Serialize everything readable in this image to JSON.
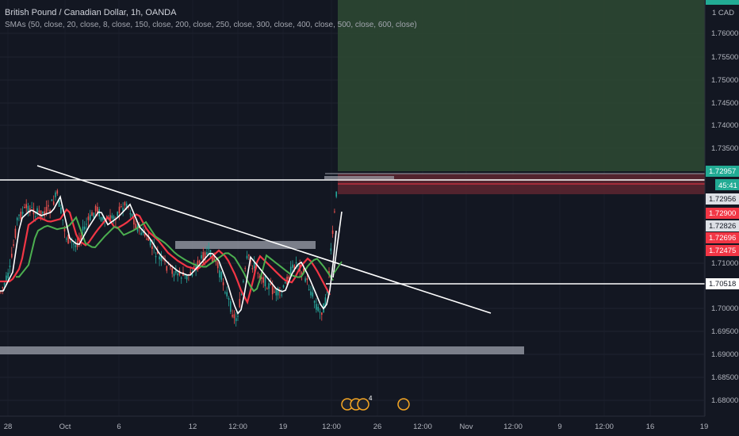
{
  "header": {
    "symbol": "British Pound / Canadian Dollar, 1h, OANDA",
    "indicator": "SMAs (50, close, 20, close, 8, close, 150, close, 200, close, 250, close, 300, close, 400, close, 500, close, 600, close)"
  },
  "currency": "1 CAD",
  "countdown": "45:41",
  "event_icons": {
    "count": "4"
  },
  "colors": {
    "bg": "#131722",
    "grid": "#1f2330",
    "up": "#26a69a",
    "down": "#ef5350",
    "sma_red": "#f23645",
    "sma_green": "#4caf50",
    "sma_white": "#ffffff",
    "target_zone": "#2e4a32",
    "stop_zone": "#5a2530",
    "last_tag": "#22ab94"
  },
  "chart_data": {
    "type": "candlestick",
    "x_ticks": [
      "28",
      "Oct",
      "6",
      "12",
      "12:00",
      "19",
      "12:00",
      "26",
      "12:00",
      "Nov",
      "12:00",
      "9",
      "12:00",
      "16",
      "19"
    ],
    "y_ticks": [
      "1.76000",
      "1.75500",
      "1.75000",
      "1.74500",
      "1.74000",
      "1.73500",
      "1.71000",
      "1.70000",
      "1.69500",
      "1.69000",
      "1.68500",
      "1.68000"
    ],
    "ylim": [
      1.6775,
      1.764
    ],
    "price_tags": [
      {
        "value": "1.72957",
        "bg": "#22ab94",
        "fg": "#ffffff"
      },
      {
        "value": "1.72956",
        "bg": "#dde0e6",
        "fg": "#131722"
      },
      {
        "value": "1.72900",
        "bg": "#f23645",
        "fg": "#ffffff"
      },
      {
        "value": "1.72826",
        "bg": "#dde0e6",
        "fg": "#131722"
      },
      {
        "value": "1.72696",
        "bg": "#f23645",
        "fg": "#ffffff"
      },
      {
        "value": "1.72475",
        "bg": "#f23645",
        "fg": "#ffffff"
      },
      {
        "value": "1.70518",
        "bg": "#ffffff",
        "fg": "#131722"
      }
    ]
  }
}
